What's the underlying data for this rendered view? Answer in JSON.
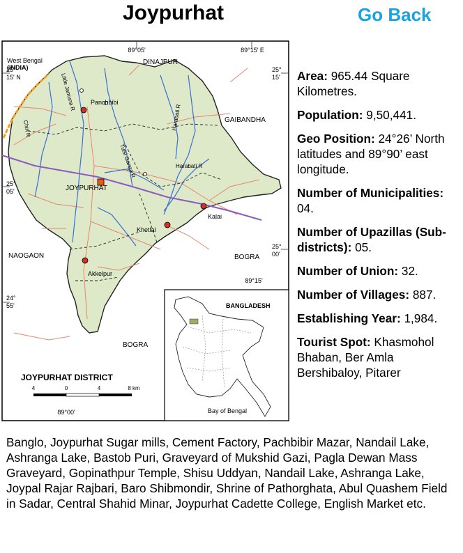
{
  "header": {
    "title": "Joypurhat",
    "go_back_label": "Go Back"
  },
  "colors": {
    "accent": "#1aa3dd",
    "district_fill": "#dde9c8",
    "border_orange": "#f0a020",
    "road": "#e8866b",
    "river": "#3a6fd0",
    "railway": "#8a5cc0"
  },
  "map": {
    "coord_top_1": "89°05'",
    "coord_top_2": "89°15' E",
    "coord_left_1": "25°\n15' N",
    "coord_right_1": "25°\n15'",
    "coord_left_2": "25°\n05'",
    "coord_right_2": "25°\n00'",
    "coord_left_3": "24°\n55'",
    "coord_mid": "89°15'",
    "coord_bottom": "89°00'",
    "region_west_bengal": "West Bengal\n(INDIA)",
    "region_dinajpur": "DINAJPUR",
    "region_gaibandha": "GAIBANDHA",
    "region_bogra_east": "BOGRA",
    "region_naogaon": "NAOGAON",
    "region_bogra_south": "BOGRA",
    "place_panchbibi": "Panchbibi",
    "place_joypurhat": "JOYPURHAT",
    "place_kalai": "Kalai",
    "place_khetlal": "Khetlal",
    "place_akkelpur": "Akkelpur",
    "river_little_jamuna": "Little Jamuna R",
    "river_chiri": "Chiri R",
    "river_tulsi_ganga": "Tulsi Ganga R",
    "river_harabati_1": "Harabati R",
    "river_harabati_2": "Harabati R",
    "district_caption": "JOYPURHAT DISTRICT",
    "scale_ticks": [
      "4",
      "0",
      "4",
      "8 km"
    ],
    "inset_title": "BANGLADESH",
    "inset_bay": "Bay of Bengal"
  },
  "facts": [
    {
      "label": "Area:",
      "value": " 965.44 Square Kilometres."
    },
    {
      "label": "Population:",
      "value": " 9,50,441."
    },
    {
      "label": "Geo Position:",
      "value": " 24°26’ North latitudes and 89°90’ east longitude."
    },
    {
      "label": "Number of Municipalities:",
      "value": " 04."
    },
    {
      "label": "Number of Upazillas (Sub-districts):",
      "value": " 05."
    },
    {
      "label": "Number of Union:",
      "value": " 32."
    },
    {
      "label": "Number of Villages:",
      "value": " 887."
    },
    {
      "label": "Establishing Year:",
      "value": " 1,984."
    }
  ],
  "tourist": {
    "label": "Tourist Spot:",
    "value_head": " Khasmohol Bhaban, Ber Amla Bershibaloy, Pitarer",
    "value_tail": "Banglo, Joypurhat Sugar mills, Cement Factory, Pachbibir Mazar, Nandail Lake, Ashranga Lake, Bastob Puri, Graveyard of Mukshid Gazi, Pagla Dewan Mass Graveyard, Gopinathpur Temple, Shisu Uddyan, Nandail Lake, Ashranga Lake, Joypal Rajar Rajbari, Baro Shibmondir, Shrine of Pathorghata, Abul Quashem Field in Sadar, Central Shahid Minar, Joypurhat Cadette College, English Market etc."
  }
}
